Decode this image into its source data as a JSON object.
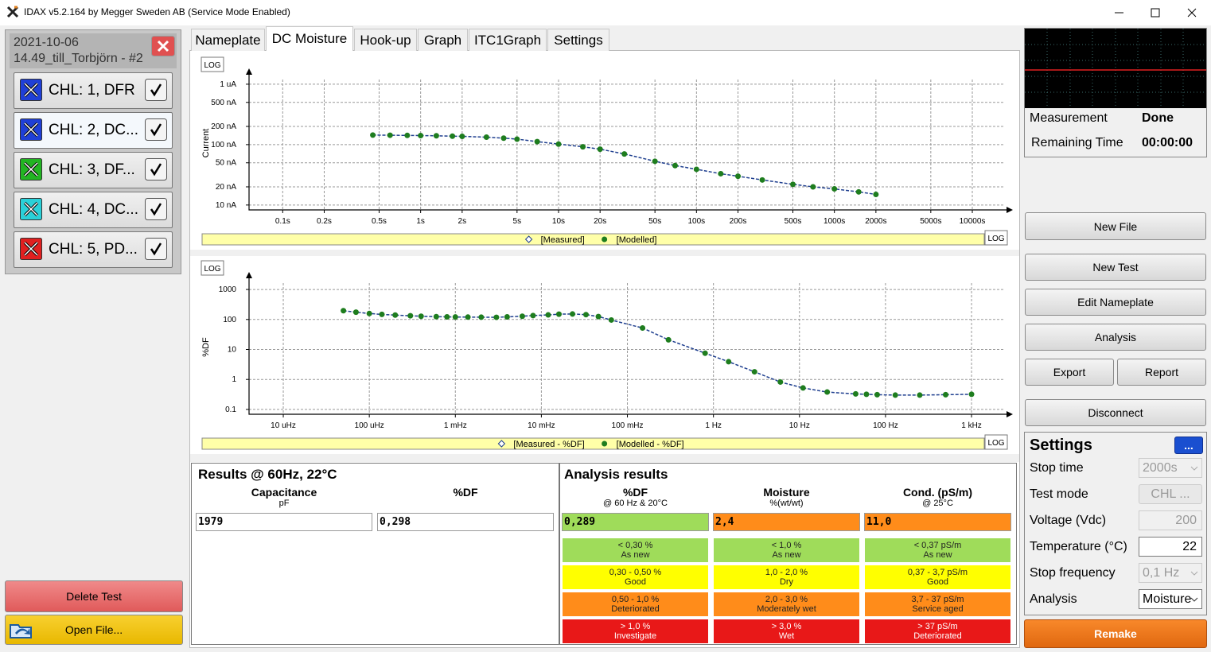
{
  "window": {
    "title": "IDAX v5.2.164 by Megger Sweden AB (Service Mode Enabled)"
  },
  "test_panel": {
    "date": "2021-10-06",
    "name": "14.49_till_Torbjörn - #2",
    "items": [
      {
        "label": "CHL: 1, DFR",
        "color": "#1f3fd6"
      },
      {
        "label": "CHL: 2, DC...",
        "color": "#1f3fd6"
      },
      {
        "label": "CHL: 3, DF...",
        "color": "#22b422"
      },
      {
        "label": "CHL: 4, DC...",
        "color": "#2ad0d8"
      },
      {
        "label": "CHL: 5, PD...",
        "color": "#e02020"
      }
    ],
    "delete_button": "Delete Test",
    "open_button": "Open File..."
  },
  "tabs": {
    "items": [
      "Nameplate",
      "DC Moisture",
      "Hook-up",
      "Graph",
      "ITC1Graph",
      "Settings"
    ],
    "active": 1
  },
  "chart_data": [
    {
      "type": "line",
      "y_label": "Current",
      "y_log_button": "LOG",
      "x_log_button": "LOG",
      "log_x": true,
      "log_y": true,
      "grid": true,
      "xlim": [
        0.057,
        17700
      ],
      "ylim": [
        8.3,
        1350
      ],
      "xticks": [
        {
          "value": 0.1,
          "label": "0.1s"
        },
        {
          "value": 0.2,
          "label": "0.2s"
        },
        {
          "value": 0.5,
          "label": "0.5s"
        },
        {
          "value": 1,
          "label": "1s"
        },
        {
          "value": 2,
          "label": "2s"
        },
        {
          "value": 5,
          "label": "5s"
        },
        {
          "value": 10,
          "label": "10s"
        },
        {
          "value": 20,
          "label": "20s"
        },
        {
          "value": 50,
          "label": "50s"
        },
        {
          "value": 100,
          "label": "100s"
        },
        {
          "value": 200,
          "label": "200s"
        },
        {
          "value": 500,
          "label": "500s"
        },
        {
          "value": 1000,
          "label": "1000s"
        },
        {
          "value": 2000,
          "label": "2000s"
        },
        {
          "value": 5000,
          "label": "5000s"
        },
        {
          "value": 10000,
          "label": "10000s"
        }
      ],
      "yticks": [
        {
          "value": 10,
          "label": "10 nA"
        },
        {
          "value": 20,
          "label": "20 nA"
        },
        {
          "value": 50,
          "label": "50 nA"
        },
        {
          "value": 100,
          "label": "100 nA"
        },
        {
          "value": 200,
          "label": "200 nA"
        },
        {
          "value": 500,
          "label": "500 nA"
        },
        {
          "value": 1000,
          "label": "1 uA"
        }
      ],
      "x": [
        0.45,
        0.6,
        0.8,
        1,
        1.3,
        1.7,
        2,
        3,
        4,
        5,
        7,
        10,
        15,
        20,
        30,
        50,
        70,
        100,
        150,
        200,
        300,
        500,
        700,
        1000,
        1500,
        2000
      ],
      "series": [
        {
          "name": "[Measured]",
          "color": "#1f3f8f",
          "marker": "diamond",
          "values": [
            144,
            143,
            142,
            141,
            140,
            138,
            137,
            133,
            128,
            123,
            112,
            102,
            92,
            84,
            70,
            53,
            45,
            39,
            33,
            30,
            26,
            22,
            20,
            18.5,
            16.5,
            15
          ]
        },
        {
          "name": "[Modelled]",
          "color": "#1e7d1e",
          "marker": "circle",
          "values": [
            144,
            143,
            142,
            141,
            140,
            138,
            137,
            133,
            128,
            123,
            112,
            102,
            92,
            84,
            70,
            53,
            45,
            39,
            33,
            30,
            26,
            22,
            20,
            18.5,
            16.5,
            15
          ]
        }
      ]
    },
    {
      "type": "line",
      "y_label": "%DF",
      "y_log_button": "LOG",
      "x_log_button": "LOG",
      "log_x": true,
      "log_y": true,
      "grid": true,
      "xlim": [
        4e-06,
        2550
      ],
      "ylim": [
        0.069,
        2090
      ],
      "xticks": [
        {
          "value": 1e-05,
          "label": "10 uHz"
        },
        {
          "value": 0.0001,
          "label": "100 uHz"
        },
        {
          "value": 0.001,
          "label": "1 mHz"
        },
        {
          "value": 0.01,
          "label": "10 mHz"
        },
        {
          "value": 0.1,
          "label": "100 mHz"
        },
        {
          "value": 1,
          "label": "1 Hz"
        },
        {
          "value": 10,
          "label": "10 Hz"
        },
        {
          "value": 100,
          "label": "100 Hz"
        },
        {
          "value": 1000,
          "label": "1 kHz"
        }
      ],
      "yticks": [
        0.1,
        1,
        10,
        100,
        1000
      ],
      "x": [
        5e-05,
        7e-05,
        0.0001,
        0.00014,
        0.0002,
        0.0003,
        0.0004,
        0.0006,
        0.0008,
        0.001,
        0.0014,
        0.002,
        0.003,
        0.004,
        0.006,
        0.008,
        0.012,
        0.016,
        0.023,
        0.033,
        0.046,
        0.065,
        0.15,
        0.3,
        0.8,
        1.5,
        3,
        6,
        11,
        21,
        45,
        60,
        80,
        130,
        250,
        500,
        1000
      ],
      "series": [
        {
          "name": "[Measured - %DF]",
          "color": "#1f3f8f",
          "marker": "diamond",
          "values": [
            196,
            175,
            158,
            148,
            140,
            133,
            128,
            124,
            122,
            121,
            120,
            119,
            118,
            122,
            128,
            135,
            142,
            150,
            152,
            145,
            125,
            96,
            52,
            21,
            7.5,
            3.9,
            1.8,
            0.82,
            0.52,
            0.38,
            0.33,
            0.32,
            0.31,
            0.3,
            0.3,
            0.31,
            0.32
          ]
        },
        {
          "name": "[Modelled - %DF]",
          "color": "#1e7d1e",
          "marker": "circle",
          "values": [
            196,
            175,
            158,
            148,
            140,
            133,
            128,
            124,
            122,
            121,
            120,
            119,
            118,
            122,
            128,
            135,
            142,
            150,
            152,
            145,
            125,
            96,
            52,
            21,
            7.5,
            3.9,
            1.8,
            0.82,
            0.52,
            0.38,
            0.33,
            0.32,
            0.31,
            0.3,
            0.3,
            0.31,
            0.32
          ]
        }
      ]
    }
  ],
  "results": {
    "title": "Results @ 60Hz, 22°C",
    "capacitance": {
      "label": "Capacitance",
      "unit": "pF",
      "value": 1979
    },
    "df": {
      "label": "%DF",
      "value": "0,298"
    }
  },
  "analysis": {
    "title": "Analysis results",
    "columns": [
      {
        "label": "%DF",
        "unit": "@ 60 Hz & 20°C",
        "value": "0,289",
        "color": "#9fdc5a"
      },
      {
        "label": "Moisture",
        "unit": "%(wt/wt)",
        "value": "2,4",
        "color": "#ff8c1a"
      },
      {
        "label": "Cond. (pS/m)",
        "unit": "@ 25°C",
        "value": "11,0",
        "color": "#ff8c1a"
      }
    ],
    "rows": [
      {
        "color": "#9fdc5a",
        "cells": [
          [
            "< 0,30 %",
            "As new"
          ],
          [
            "< 1,0 %",
            "As new"
          ],
          [
            "< 0,37 pS/m",
            "As new"
          ]
        ]
      },
      {
        "color": "#ffff00",
        "cells": [
          [
            "0,30 - 0,50 %",
            "Good"
          ],
          [
            "1,0 - 2,0 %",
            "Dry"
          ],
          [
            "0,37 - 3,7 pS/m",
            "Good"
          ]
        ]
      },
      {
        "color": "#ff8c1a",
        "cells": [
          [
            "0,50 - 1,0 %",
            "Deteriorated"
          ],
          [
            "2,0 - 3,0 %",
            "Moderately wet"
          ],
          [
            "3,7 - 37 pS/m",
            "Service aged"
          ]
        ]
      },
      {
        "color": "#e81818",
        "cells": [
          [
            "> 1,0 %",
            "Investigate"
          ],
          [
            "> 3,0 %",
            "Wet"
          ],
          [
            "> 37 pS/m",
            "Deteriorated"
          ]
        ]
      }
    ]
  },
  "status": {
    "measurement_label": "Measurement",
    "measurement_value": "Done",
    "remaining_label": "Remaining Time",
    "remaining_value": "00:00:00"
  },
  "buttons": {
    "new_file": "New File",
    "new_test": "New Test",
    "edit_nameplate": "Edit Nameplate",
    "analysis": "Analysis",
    "export": "Export",
    "report": "Report",
    "disconnect": "Disconnect",
    "remake": "Remake"
  },
  "settings": {
    "title": "Settings",
    "more_button": "...",
    "fields": [
      {
        "label": "Stop time",
        "value": "2000s",
        "control": "select-disabled"
      },
      {
        "label": "Test mode",
        "value": "CHL ...",
        "control": "button-disabled"
      },
      {
        "label": "Voltage (Vdc)",
        "value": "200",
        "control": "input-disabled"
      },
      {
        "label": "Temperature (°C)",
        "value": "22",
        "control": "input"
      },
      {
        "label": "Stop frequency",
        "value": "0,1 Hz",
        "control": "select-disabled"
      },
      {
        "label": "Analysis",
        "value": "Moisture",
        "control": "select"
      }
    ]
  }
}
